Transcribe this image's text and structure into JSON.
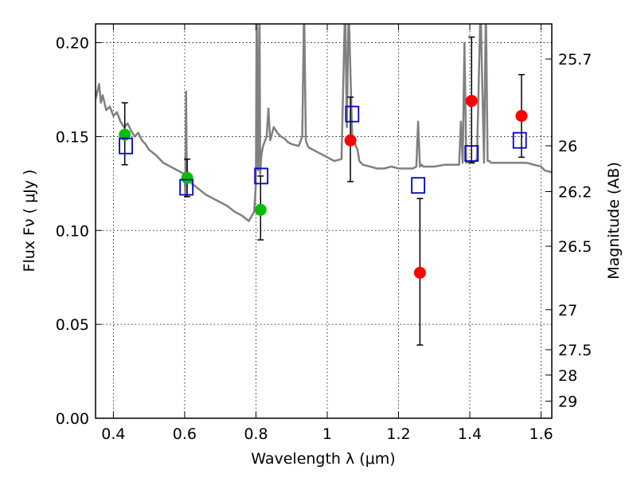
{
  "chart_data": {
    "type": "scatter",
    "title": "",
    "xlabel": "Wavelength  λ (μm)",
    "ylabel": "Flux  Fν  ( μJy )",
    "ylabel_right": "Magnitude (AB)",
    "xlim": [
      0.35,
      1.63
    ],
    "ylim": [
      0.0,
      0.21
    ],
    "grid": true,
    "x_ticks": [
      0.4,
      0.6,
      0.8,
      1.0,
      1.2,
      1.4,
      1.6
    ],
    "x_tick_labels": [
      "0.4",
      "0.6",
      "0.8",
      "1",
      "1.2",
      "1.4",
      "1.6"
    ],
    "y_ticks": [
      0.0,
      0.05,
      0.1,
      0.15,
      0.2
    ],
    "y_tick_labels": [
      "0.00",
      "0.05",
      "0.10",
      "0.15",
      "0.20"
    ],
    "right_ticks": [
      {
        "label": "25.7",
        "flux": 0.1913
      },
      {
        "label": "26",
        "flux": 0.1451
      },
      {
        "label": "26.2",
        "flux": 0.1207
      },
      {
        "label": "26.5",
        "flux": 0.0916
      },
      {
        "label": "27",
        "flux": 0.0578
      },
      {
        "label": "27.5",
        "flux": 0.0365
      },
      {
        "label": "28",
        "flux": 0.023
      },
      {
        "label": "29",
        "flux": 0.0091
      }
    ],
    "model_spectrum": {
      "name": "model SED",
      "color": "#808080",
      "x": [
        0.35,
        0.36,
        0.365,
        0.37,
        0.38,
        0.39,
        0.4,
        0.41,
        0.42,
        0.43,
        0.44,
        0.45,
        0.46,
        0.47,
        0.48,
        0.49,
        0.5,
        0.52,
        0.54,
        0.56,
        0.58,
        0.6,
        0.602,
        0.604,
        0.606,
        0.608,
        0.61,
        0.62,
        0.64,
        0.66,
        0.68,
        0.7,
        0.72,
        0.74,
        0.76,
        0.78,
        0.795,
        0.8,
        0.802,
        0.806,
        0.81,
        0.812,
        0.815,
        0.82,
        0.83,
        0.835,
        0.84,
        0.85,
        0.86,
        0.87,
        0.88,
        0.89,
        0.9,
        0.92,
        0.93,
        0.935,
        0.94,
        0.945,
        0.95,
        0.97,
        1.0,
        1.02,
        1.04,
        1.05,
        1.055,
        1.06,
        1.07,
        1.08,
        1.085,
        1.09,
        1.1,
        1.12,
        1.14,
        1.16,
        1.18,
        1.2,
        1.22,
        1.24,
        1.25,
        1.255,
        1.26,
        1.265,
        1.27,
        1.3,
        1.33,
        1.36,
        1.37,
        1.375,
        1.38,
        1.385,
        1.39,
        1.4,
        1.41,
        1.42,
        1.43,
        1.44,
        1.445,
        1.45,
        1.455,
        1.46,
        1.48,
        1.5,
        1.52,
        1.54,
        1.56,
        1.58,
        1.6,
        1.61,
        1.63
      ],
      "y": [
        0.17,
        0.178,
        0.168,
        0.172,
        0.164,
        0.166,
        0.161,
        0.163,
        0.158,
        0.155,
        0.157,
        0.153,
        0.15,
        0.152,
        0.148,
        0.146,
        0.143,
        0.14,
        0.136,
        0.134,
        0.132,
        0.13,
        0.118,
        0.174,
        0.128,
        0.131,
        0.127,
        0.125,
        0.122,
        0.119,
        0.117,
        0.115,
        0.113,
        0.11,
        0.108,
        0.105,
        0.11,
        0.125,
        0.22,
        0.132,
        0.22,
        0.13,
        0.14,
        0.145,
        0.15,
        0.165,
        0.148,
        0.155,
        0.152,
        0.15,
        0.149,
        0.147,
        0.146,
        0.145,
        0.15,
        0.22,
        0.148,
        0.145,
        0.144,
        0.142,
        0.139,
        0.137,
        0.138,
        0.22,
        0.155,
        0.22,
        0.15,
        0.145,
        0.143,
        0.137,
        0.135,
        0.134,
        0.133,
        0.133,
        0.134,
        0.133,
        0.133,
        0.133,
        0.134,
        0.158,
        0.134,
        0.135,
        0.134,
        0.134,
        0.135,
        0.135,
        0.135,
        0.158,
        0.136,
        0.2,
        0.136,
        0.137,
        0.136,
        0.138,
        0.22,
        0.136,
        0.22,
        0.137,
        0.137,
        0.136,
        0.136,
        0.136,
        0.136,
        0.136,
        0.136,
        0.135,
        0.134,
        0.132,
        0.131
      ]
    },
    "series": [
      {
        "name": "green points",
        "marker": "circle",
        "color": "#00c000",
        "x": [
          0.432,
          0.607,
          0.813
        ],
        "y": [
          0.151,
          0.128,
          0.111
        ],
        "err_low": [
          0.135,
          0.118,
          0.095
        ],
        "err_high": [
          0.168,
          0.138,
          0.129
        ]
      },
      {
        "name": "red points",
        "marker": "circle",
        "color": "#ff0000",
        "x": [
          1.065,
          1.26,
          1.405,
          1.545
        ],
        "y": [
          0.148,
          0.0775,
          0.169,
          0.161
        ],
        "err_low": [
          0.126,
          0.039,
          0.136,
          0.139
        ],
        "err_high": [
          0.171,
          0.117,
          0.203,
          0.183
        ]
      },
      {
        "name": "blue model squares",
        "marker": "square",
        "color": "#0000cc",
        "x": [
          0.435,
          0.605,
          0.815,
          1.07,
          1.255,
          1.405,
          1.54
        ],
        "y": [
          0.145,
          0.123,
          0.129,
          0.162,
          0.124,
          0.141,
          0.148
        ]
      }
    ]
  }
}
